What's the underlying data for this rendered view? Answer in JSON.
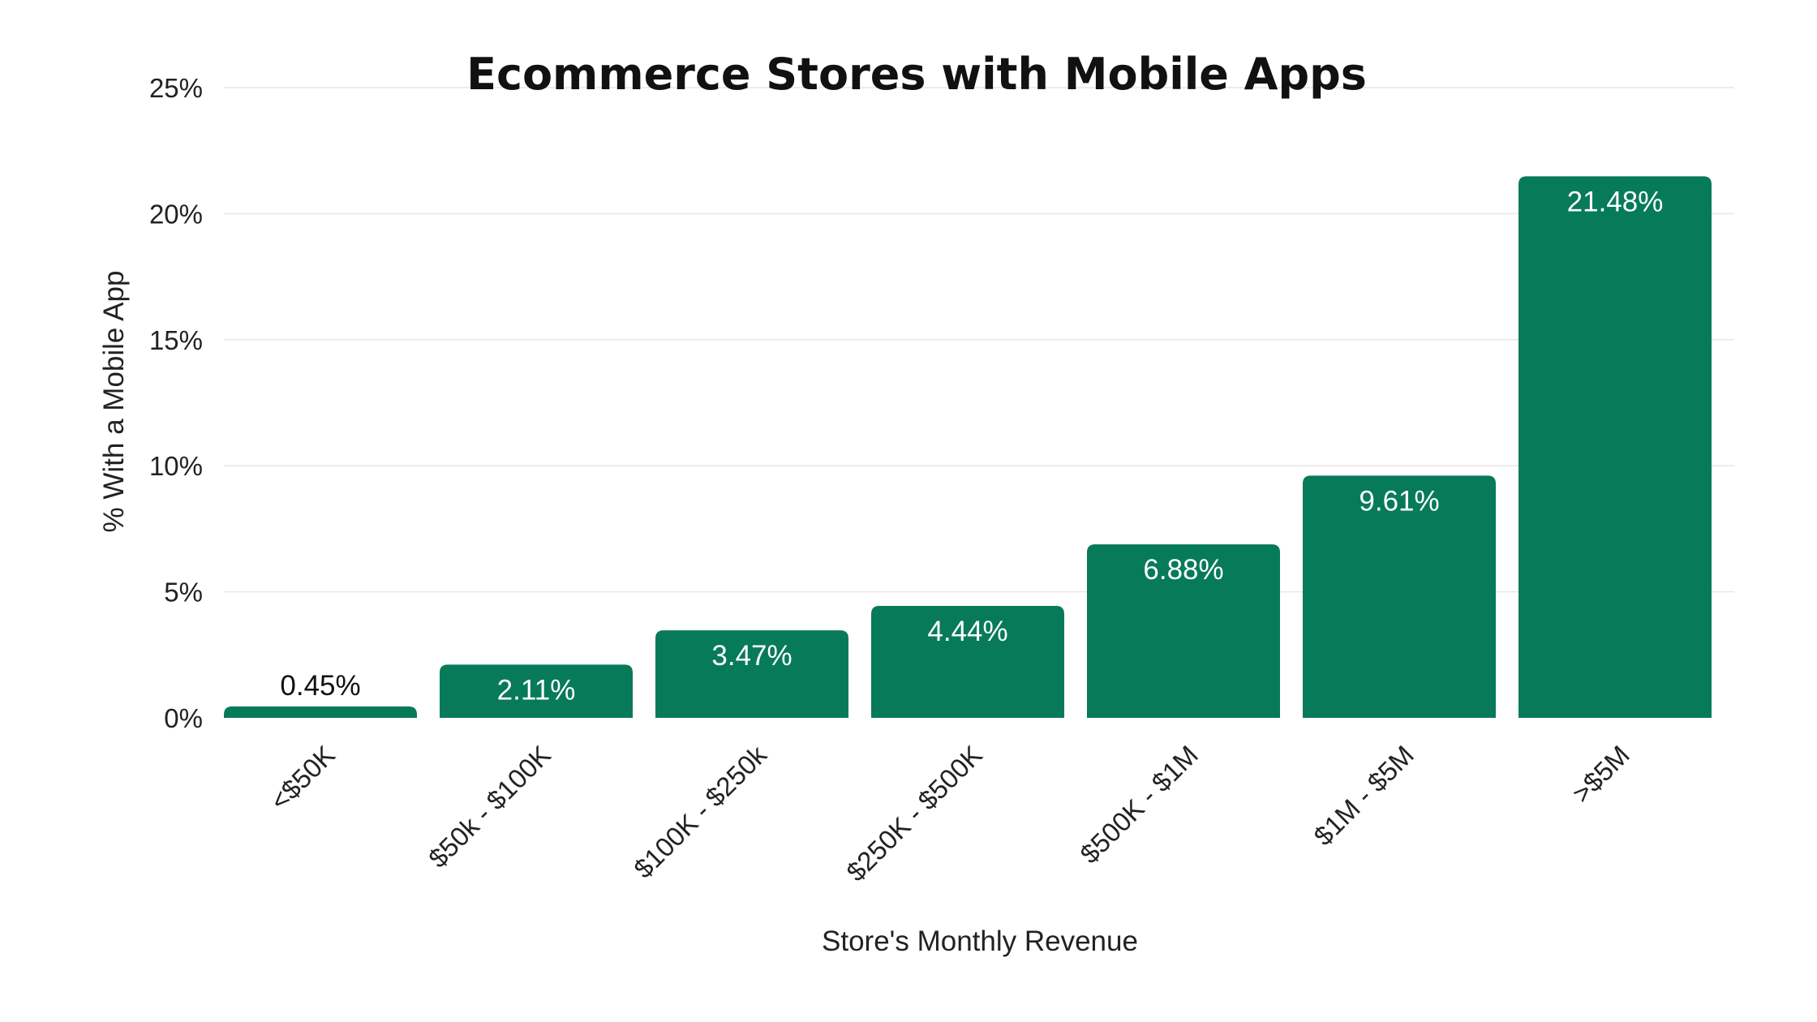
{
  "chart_data": {
    "type": "bar",
    "title": "Ecommerce Stores with Mobile Apps",
    "xlabel": "Store's Monthly Revenue",
    "ylabel": "% With a Mobile App",
    "categories": [
      "<$50K",
      "$50k - $100K",
      "$100K - $250k",
      "$250K - $500K",
      "$500K - $1M",
      "$1M - $5M",
      ">$5M"
    ],
    "values": [
      0.45,
      2.11,
      3.47,
      4.44,
      6.88,
      9.61,
      21.48
    ],
    "value_labels": [
      "0.45%",
      "2.11%",
      "3.47%",
      "4.44%",
      "6.88%",
      "9.61%",
      "21.48%"
    ],
    "ylim": [
      0,
      25
    ],
    "yticks": [
      0,
      5,
      10,
      15,
      20,
      25
    ],
    "ytick_labels": [
      "0%",
      "5%",
      "10%",
      "15%",
      "20%",
      "25%"
    ],
    "grid": true,
    "colors": {
      "bar": "#077a5a",
      "label_inside": "#ffffff",
      "label_outside": "#111111"
    }
  }
}
